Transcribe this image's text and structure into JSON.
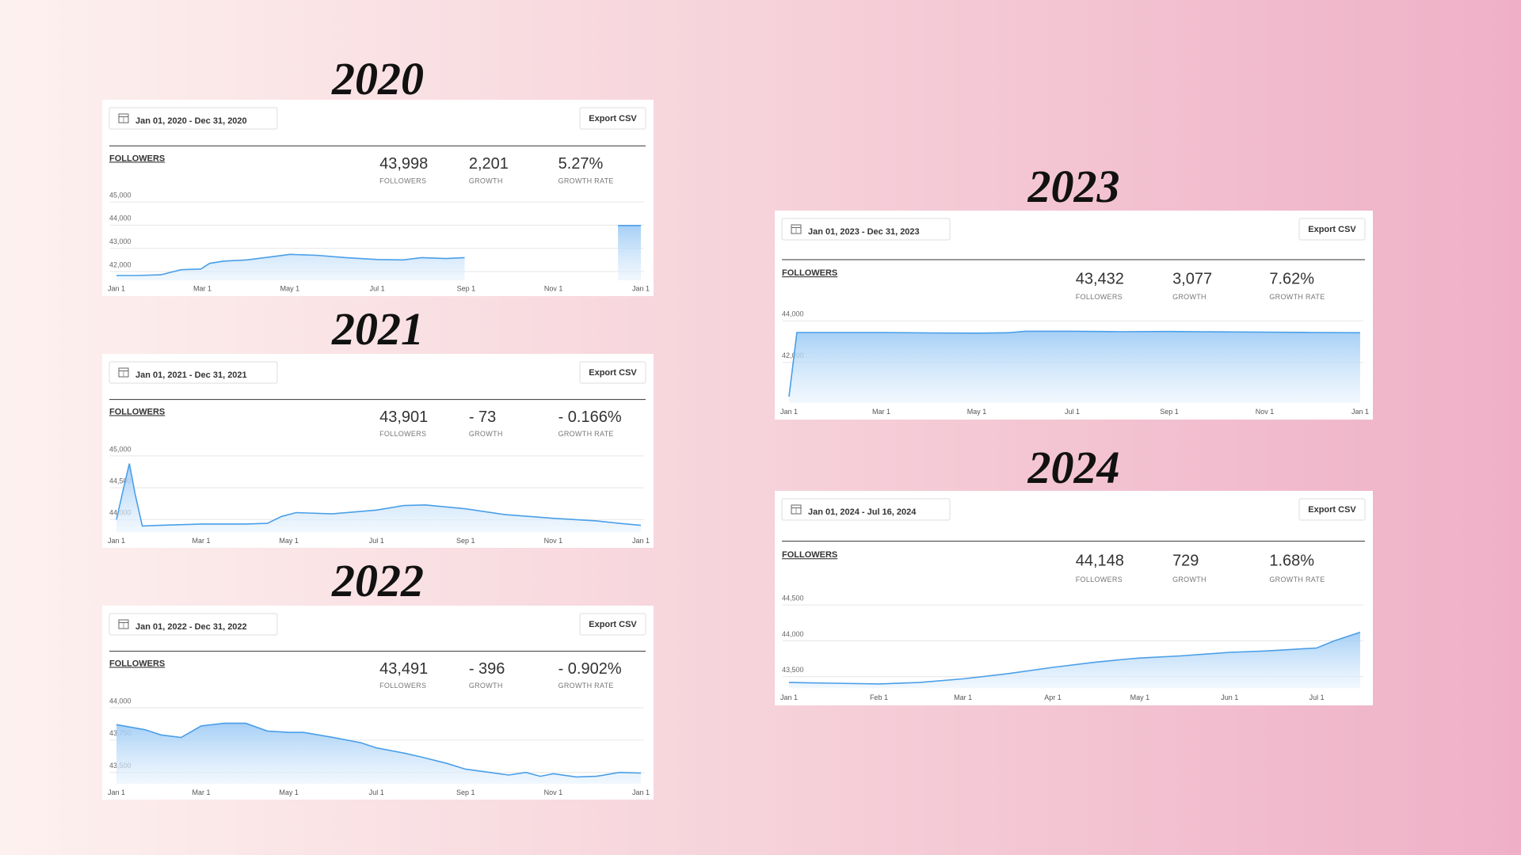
{
  "chart_data": [
    {
      "type": "area",
      "title": "2020",
      "date_range": "Jan 01, 2020 - Dec 31, 2020",
      "button": "Export CSV",
      "metric": "FOLLOWERS",
      "stats": [
        {
          "value": "43,998",
          "label": "FOLLOWERS"
        },
        {
          "value": "2,201",
          "label": "GROWTH"
        },
        {
          "value": "5.27%",
          "label": "GROWTH RATE"
        }
      ],
      "color": "#4a9fe8",
      "x": [
        0,
        15,
        31,
        45,
        59,
        65,
        75,
        91,
        110,
        121,
        140,
        160,
        182,
        200,
        213,
        230,
        243,
        300,
        350,
        366
      ],
      "values": [
        41830,
        41830,
        41860,
        42080,
        42110,
        42350,
        42450,
        42500,
        42650,
        42740,
        42700,
        42600,
        42520,
        42500,
        42600,
        42560,
        42600,
        null,
        43980,
        43980
      ],
      "xlim": [
        0,
        366
      ],
      "ylim": [
        41620,
        45170
      ],
      "xticks": [
        {
          "value": 0,
          "label": "Jan 1"
        },
        {
          "value": 60,
          "label": "Mar 1"
        },
        {
          "value": 121,
          "label": "May 1"
        },
        {
          "value": 182,
          "label": "Jul 1"
        },
        {
          "value": 244,
          "label": "Sep 1"
        },
        {
          "value": 305,
          "label": "Nov 1"
        },
        {
          "value": 366,
          "label": "Jan 1"
        }
      ],
      "yticks": [
        {
          "value": 42000,
          "label": "42,000"
        },
        {
          "value": 43000,
          "label": "43,000"
        },
        {
          "value": 44000,
          "label": "44,000"
        },
        {
          "value": 45000,
          "label": "45,000"
        }
      ],
      "grid": true
    },
    {
      "type": "area",
      "title": "2021",
      "date_range": "Jan 01, 2021 - Dec 31, 2021",
      "button": "Export CSV",
      "metric": "FOLLOWERS",
      "stats": [
        {
          "value": "43,901",
          "label": "FOLLOWERS"
        },
        {
          "value": "- 73",
          "label": "GROWTH"
        },
        {
          "value": "- 0.166%",
          "label": "GROWTH RATE"
        }
      ],
      "color": "#4a9fe8",
      "x": [
        0,
        5,
        9,
        13,
        18,
        30,
        60,
        90,
        105,
        115,
        125,
        150,
        181,
        200,
        215,
        243,
        270,
        304,
        334,
        350,
        365
      ],
      "values": [
        44000,
        44500,
        44880,
        44400,
        43900,
        43910,
        43930,
        43930,
        43940,
        44050,
        44110,
        44090,
        44150,
        44220,
        44230,
        44170,
        44080,
        44020,
        43980,
        43940,
        43910
      ],
      "xlim": [
        0,
        365
      ],
      "ylim": [
        43800,
        45080
      ],
      "xticks": [
        {
          "value": 0,
          "label": "Jan 1"
        },
        {
          "value": 59,
          "label": "Mar 1"
        },
        {
          "value": 120,
          "label": "May 1"
        },
        {
          "value": 181,
          "label": "Jul 1"
        },
        {
          "value": 243,
          "label": "Sep 1"
        },
        {
          "value": 304,
          "label": "Nov 1"
        },
        {
          "value": 365,
          "label": "Jan 1"
        }
      ],
      "yticks": [
        {
          "value": 44000,
          "label": "44,000"
        },
        {
          "value": 44500,
          "label": "44,500"
        },
        {
          "value": 45000,
          "label": "45,000"
        }
      ],
      "grid": true
    },
    {
      "type": "area",
      "title": "2022",
      "date_range": "Jan 01, 2022 - Dec 31, 2022",
      "button": "Export CSV",
      "metric": "FOLLOWERS",
      "stats": [
        {
          "value": "43,491",
          "label": "FOLLOWERS"
        },
        {
          "value": "- 396",
          "label": "GROWTH"
        },
        {
          "value": "- 0.902%",
          "label": "GROWTH RATE"
        }
      ],
      "color": "#4a9fe8",
      "x": [
        0,
        20,
        31,
        45,
        59,
        75,
        90,
        105,
        120,
        130,
        151,
        170,
        181,
        200,
        212,
        230,
        243,
        260,
        273,
        285,
        295,
        304,
        320,
        334,
        350,
        365
      ],
      "values": [
        43870,
        43830,
        43790,
        43770,
        43860,
        43880,
        43880,
        43820,
        43810,
        43810,
        43770,
        43730,
        43690,
        43650,
        43620,
        43570,
        43525,
        43500,
        43480,
        43500,
        43470,
        43490,
        43465,
        43470,
        43500,
        43495
      ],
      "xlim": [
        0,
        365
      ],
      "ylim": [
        43410,
        44040
      ],
      "xticks": [
        {
          "value": 0,
          "label": "Jan 1"
        },
        {
          "value": 59,
          "label": "Mar 1"
        },
        {
          "value": 120,
          "label": "May 1"
        },
        {
          "value": 181,
          "label": "Jul 1"
        },
        {
          "value": 243,
          "label": "Sep 1"
        },
        {
          "value": 304,
          "label": "Nov 1"
        },
        {
          "value": 365,
          "label": "Jan 1"
        }
      ],
      "yticks": [
        {
          "value": 43500,
          "label": "43,500"
        },
        {
          "value": 43750,
          "label": "43,750"
        },
        {
          "value": 44000,
          "label": "44,000"
        }
      ],
      "grid": true
    },
    {
      "type": "area",
      "title": "2023",
      "date_range": "Jan 01, 2023 - Dec 31, 2023",
      "button": "Export CSV",
      "metric": "FOLLOWERS",
      "stats": [
        {
          "value": "43,432",
          "label": "FOLLOWERS"
        },
        {
          "value": "3,077",
          "label": "GROWTH"
        },
        {
          "value": "7.62%",
          "label": "GROWTH RATE"
        }
      ],
      "color": "#4a9fe8",
      "x": [
        0,
        5,
        30,
        60,
        90,
        120,
        140,
        151,
        181,
        212,
        243,
        273,
        304,
        334,
        365
      ],
      "values": [
        40350,
        43440,
        43440,
        43440,
        43420,
        43410,
        43430,
        43500,
        43500,
        43480,
        43490,
        43470,
        43460,
        43440,
        43430
      ],
      "xlim": [
        0,
        365
      ],
      "ylim": [
        40050,
        44280
      ],
      "xticks": [
        {
          "value": 0,
          "label": "Jan 1"
        },
        {
          "value": 59,
          "label": "Mar 1"
        },
        {
          "value": 120,
          "label": "May 1"
        },
        {
          "value": 181,
          "label": "Jul 1"
        },
        {
          "value": 243,
          "label": "Sep 1"
        },
        {
          "value": 304,
          "label": "Nov 1"
        },
        {
          "value": 365,
          "label": "Jan 1"
        }
      ],
      "yticks": [
        {
          "value": 42000,
          "label": "42,000"
        },
        {
          "value": 44000,
          "label": "44,000"
        }
      ],
      "grid": true
    },
    {
      "type": "area",
      "title": "2024",
      "date_range": "Jan 01, 2024 - Jul 16, 2024",
      "button": "Export CSV",
      "metric": "FOLLOWERS",
      "stats": [
        {
          "value": "44,148",
          "label": "FOLLOWERS"
        },
        {
          "value": "729",
          "label": "GROWTH"
        },
        {
          "value": "1.68%",
          "label": "GROWTH RATE"
        }
      ],
      "color": "#4a9fe8",
      "x": [
        0,
        15,
        31,
        45,
        60,
        75,
        91,
        105,
        115,
        121,
        135,
        152,
        165,
        182,
        188,
        197
      ],
      "values": [
        43420,
        43410,
        43400,
        43420,
        43470,
        43540,
        43630,
        43700,
        43740,
        43760,
        43790,
        43840,
        43860,
        43900,
        44000,
        44120
      ],
      "xlim": [
        0,
        197
      ],
      "ylim": [
        43340,
        44595
      ],
      "xticks": [
        {
          "value": 0,
          "label": "Jan 1"
        },
        {
          "value": 31,
          "label": "Feb 1"
        },
        {
          "value": 60,
          "label": "Mar 1"
        },
        {
          "value": 91,
          "label": "Apr 1"
        },
        {
          "value": 121,
          "label": "May 1"
        },
        {
          "value": 152,
          "label": "Jun 1"
        },
        {
          "value": 182,
          "label": "Jul 1"
        }
      ],
      "yticks": [
        {
          "value": 43500,
          "label": "43,500"
        },
        {
          "value": 44000,
          "label": "44,000"
        },
        {
          "value": 44500,
          "label": "44,500"
        }
      ],
      "grid": true
    }
  ]
}
